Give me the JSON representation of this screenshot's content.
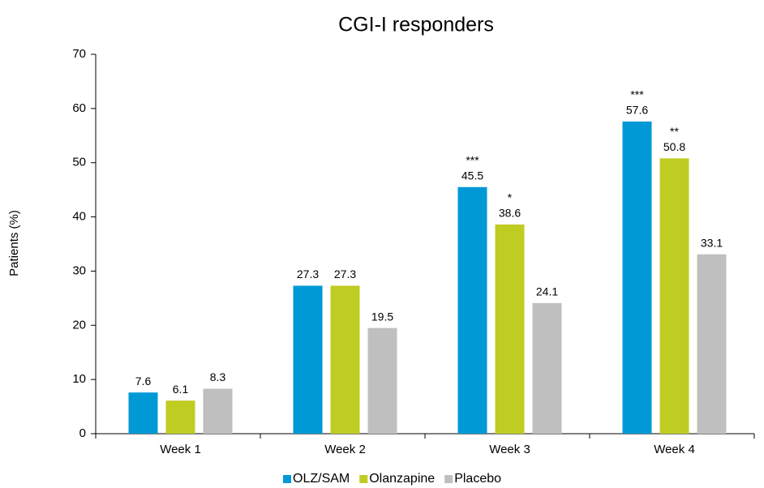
{
  "chart_data": {
    "type": "bar",
    "title": "CGI-I responders",
    "y_label": "Patients (%)",
    "categories": [
      "Week 1",
      "Week 2",
      "Week 3",
      "Week 4"
    ],
    "series": [
      {
        "name": "OLZ/SAM",
        "color": "#0099d6",
        "values": [
          7.6,
          27.3,
          45.5,
          57.6
        ],
        "significance": [
          null,
          null,
          "***",
          "***"
        ]
      },
      {
        "name": "Olanzapine",
        "color": "#bfcc22",
        "values": [
          6.1,
          27.3,
          38.6,
          50.8
        ],
        "significance": [
          null,
          null,
          "*",
          "**"
        ]
      },
      {
        "name": "Placebo",
        "color": "#bfbfbf",
        "values": [
          8.3,
          19.5,
          24.1,
          33.1
        ],
        "significance": [
          null,
          null,
          null,
          null
        ]
      }
    ],
    "ylim": [
      0,
      70
    ],
    "yticks": [
      0,
      10,
      20,
      30,
      40,
      50,
      60,
      70
    ],
    "grid": false,
    "legend": "bottom"
  }
}
